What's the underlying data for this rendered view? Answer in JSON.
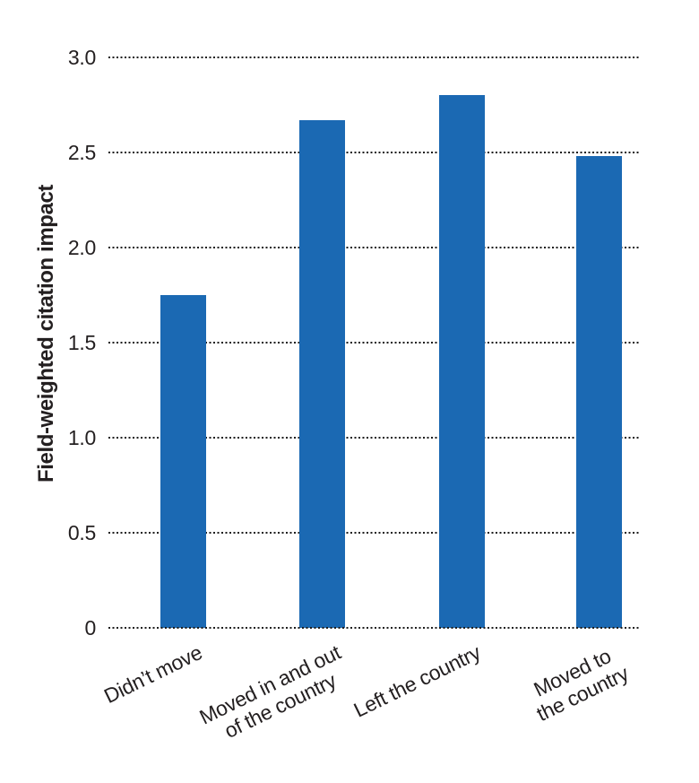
{
  "chart_data": {
    "type": "bar",
    "title": "",
    "ylabel": "Field-weighted citation impact",
    "xlabel": "",
    "categories": [
      "Didn’t move",
      "Moved in and out\nof the country",
      "Left the country",
      "Moved to\nthe country"
    ],
    "values": [
      1.75,
      2.67,
      2.8,
      2.48
    ],
    "ytick_labels": [
      "0",
      "0.5",
      "1.0",
      "1.5",
      "2.0",
      "2.5",
      "3.0"
    ],
    "ytick_values": [
      0,
      0.5,
      1,
      1.5,
      2,
      2.5,
      3
    ],
    "ylim": [
      0,
      3
    ],
    "grid": "horizontal-dotted",
    "legend_position": "none",
    "colors": {
      "bar": "#1b69b3",
      "grid_dots": "#1e1e1e",
      "text": "#231f20",
      "background": "#ffffff"
    }
  }
}
